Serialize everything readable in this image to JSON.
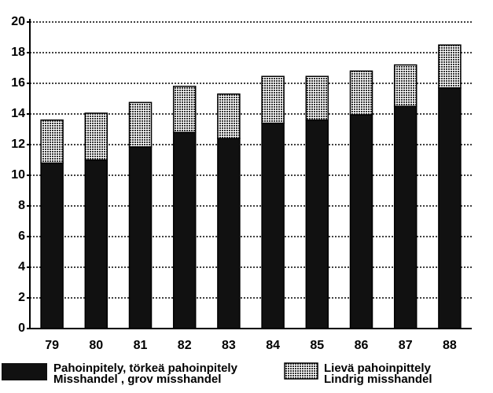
{
  "chart_data": {
    "type": "stacked-bar",
    "categories": [
      "79",
      "80",
      "81",
      "82",
      "83",
      "84",
      "85",
      "86",
      "87",
      "88"
    ],
    "series": [
      {
        "name": "Pahoinpitely, törkeä pahoinpitely\nMisshandel , grov misshandel",
        "color": "#111111",
        "values": [
          10.8,
          11.0,
          11.85,
          12.8,
          12.4,
          13.4,
          13.6,
          13.95,
          14.5,
          15.7
        ]
      },
      {
        "name": "Lievä pahoinpittely\nLindrig  misshandel",
        "color": "#9a9a9a",
        "values": [
          2.8,
          3.05,
          2.9,
          3.0,
          2.9,
          3.05,
          2.85,
          2.85,
          2.7,
          2.8
        ]
      }
    ],
    "ylim": [
      0,
      20
    ],
    "yticks": [
      0,
      2,
      4,
      6,
      8,
      10,
      12,
      14,
      16,
      18,
      20
    ],
    "grid": true
  }
}
